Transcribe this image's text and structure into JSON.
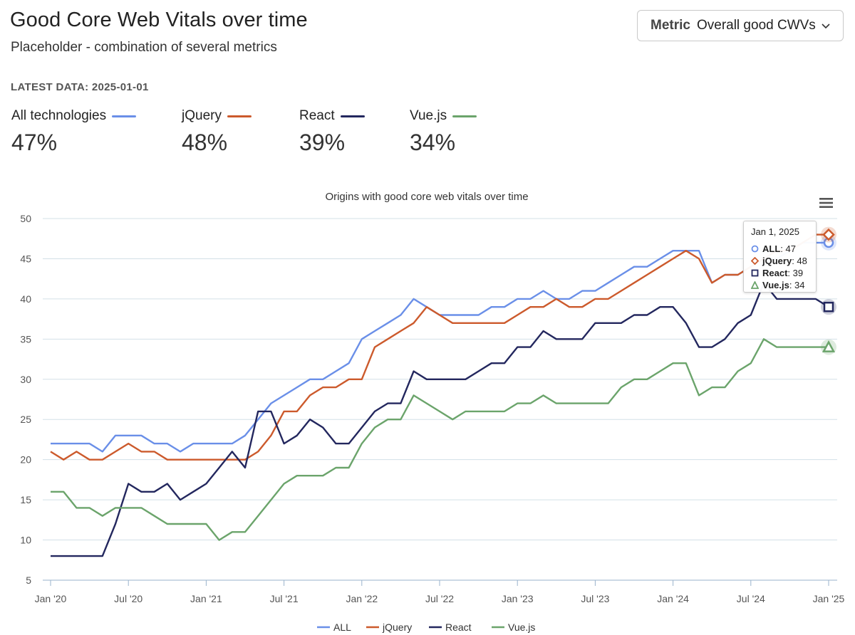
{
  "header": {
    "title": "Good Core Web Vitals over time",
    "subtitle": "Placeholder - combination of several metrics",
    "latest_data": "LATEST DATA: 2025-01-01"
  },
  "metric_select": {
    "label": "Metric",
    "value": "Overall good CWVs"
  },
  "summary": [
    {
      "name": "All technologies",
      "value": "47%",
      "color": "#6a8fe8"
    },
    {
      "name": "jQuery",
      "value": "48%",
      "color": "#cc5a2c"
    },
    {
      "name": "React",
      "value": "39%",
      "color": "#23275e"
    },
    {
      "name": "Vue.js",
      "value": "34%",
      "color": "#6ba46b"
    }
  ],
  "menu_icon": "hamburger-menu-icon",
  "chart_data": {
    "type": "line",
    "title": "Origins with good core web vitals over time",
    "xlabel": "",
    "ylabel": "",
    "ylim": [
      5,
      50
    ],
    "yticks": [
      5,
      10,
      15,
      20,
      25,
      30,
      35,
      40,
      45,
      50
    ],
    "grid": true,
    "legend_position": "bottom-center",
    "x_start": "2020-01",
    "x_ticks": [
      {
        "index": 0,
        "label": "Jan '20"
      },
      {
        "index": 6,
        "label": "Jul '20"
      },
      {
        "index": 12,
        "label": "Jan '21"
      },
      {
        "index": 18,
        "label": "Jul '21"
      },
      {
        "index": 24,
        "label": "Jan '22"
      },
      {
        "index": 30,
        "label": "Jul '22"
      },
      {
        "index": 36,
        "label": "Jan '23"
      },
      {
        "index": 42,
        "label": "Jul '23"
      },
      {
        "index": 48,
        "label": "Jan '24"
      },
      {
        "index": 54,
        "label": "Jul '24"
      },
      {
        "index": 60,
        "label": "Jan '25"
      }
    ],
    "series": [
      {
        "name": "ALL",
        "color": "#6a8fe8",
        "marker": "circle",
        "values": [
          22,
          22,
          22,
          22,
          21,
          23,
          23,
          23,
          22,
          22,
          21,
          22,
          22,
          22,
          22,
          23,
          25,
          27,
          28,
          29,
          30,
          30,
          31,
          32,
          35,
          36,
          37,
          38,
          40,
          39,
          38,
          38,
          38,
          38,
          39,
          39,
          40,
          40,
          41,
          40,
          40,
          41,
          41,
          42,
          43,
          44,
          44,
          45,
          46,
          46,
          46,
          42,
          43,
          43,
          44,
          45,
          45,
          46,
          47,
          47,
          47
        ]
      },
      {
        "name": "jQuery",
        "color": "#cc5a2c",
        "marker": "diamond",
        "values": [
          21,
          20,
          21,
          20,
          20,
          21,
          22,
          21,
          21,
          20,
          20,
          20,
          20,
          20,
          20,
          20,
          21,
          23,
          26,
          26,
          28,
          29,
          29,
          30,
          30,
          34,
          35,
          36,
          37,
          39,
          38,
          37,
          37,
          37,
          37,
          37,
          38,
          39,
          39,
          40,
          39,
          39,
          40,
          40,
          41,
          42,
          43,
          44,
          45,
          46,
          45,
          42,
          43,
          43,
          44,
          45,
          46,
          46,
          47,
          48,
          48
        ]
      },
      {
        "name": "React",
        "color": "#23275e",
        "marker": "square",
        "values": [
          8,
          8,
          8,
          8,
          8,
          12,
          17,
          16,
          16,
          17,
          15,
          16,
          17,
          19,
          21,
          19,
          26,
          26,
          22,
          23,
          25,
          24,
          22,
          22,
          24,
          26,
          27,
          27,
          31,
          30,
          30,
          30,
          30,
          31,
          32,
          32,
          34,
          34,
          36,
          35,
          35,
          35,
          37,
          37,
          37,
          38,
          38,
          39,
          39,
          37,
          34,
          34,
          35,
          37,
          38,
          42,
          40,
          40,
          40,
          40,
          39
        ]
      },
      {
        "name": "Vue.js",
        "color": "#6ba46b",
        "marker": "triangle",
        "values": [
          16,
          16,
          14,
          14,
          13,
          14,
          14,
          14,
          13,
          12,
          12,
          12,
          12,
          10,
          11,
          11,
          13,
          15,
          17,
          18,
          18,
          18,
          19,
          19,
          22,
          24,
          25,
          25,
          28,
          27,
          26,
          25,
          26,
          26,
          26,
          26,
          27,
          27,
          28,
          27,
          27,
          27,
          27,
          27,
          29,
          30,
          30,
          31,
          32,
          32,
          28,
          29,
          29,
          31,
          32,
          35,
          34,
          34,
          34,
          34,
          34
        ]
      }
    ],
    "tooltip": {
      "date": "Jan 1, 2025",
      "rows": [
        {
          "name": "ALL",
          "value": ": 47"
        },
        {
          "name": "jQuery",
          "value": ": 48"
        },
        {
          "name": "React",
          "value": ": 39"
        },
        {
          "name": "Vue.js",
          "value": ": 34"
        }
      ]
    }
  }
}
